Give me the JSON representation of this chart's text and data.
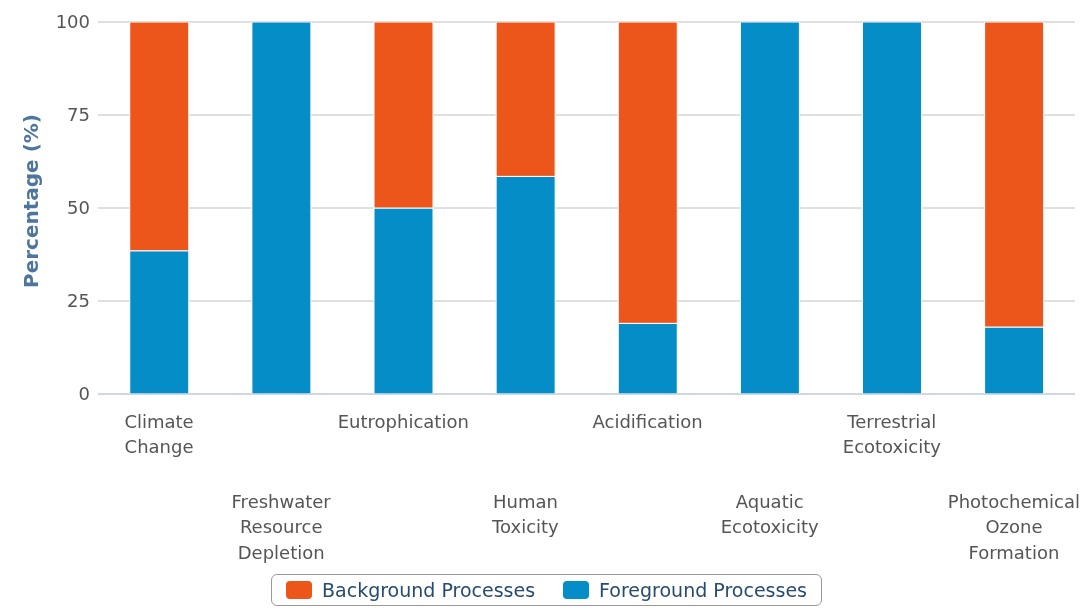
{
  "chart_data": {
    "type": "bar",
    "stacked": true,
    "ylabel": "Percentage (%)",
    "categories": [
      "Climate Change",
      "Freshwater Resource Depletion",
      "Eutrophication",
      "Human Toxicity",
      "Acidification",
      "Aquatic Ecotoxicity",
      "Terrestrial Ecotoxicity",
      "Photochemical Ozone Formation"
    ],
    "series": [
      {
        "name": "Foreground Processes",
        "color": "#058dc7",
        "values": [
          38.5,
          100,
          50,
          58.5,
          19,
          100,
          100,
          18
        ]
      },
      {
        "name": "Background Processes",
        "color": "#ec561b",
        "values": [
          61.5,
          0,
          50,
          41.5,
          81,
          0,
          0,
          82
        ]
      }
    ],
    "ylim": [
      0,
      100
    ],
    "yticks": [
      0,
      25,
      50,
      75,
      100
    ],
    "grid": "y",
    "legend": "bottom"
  }
}
